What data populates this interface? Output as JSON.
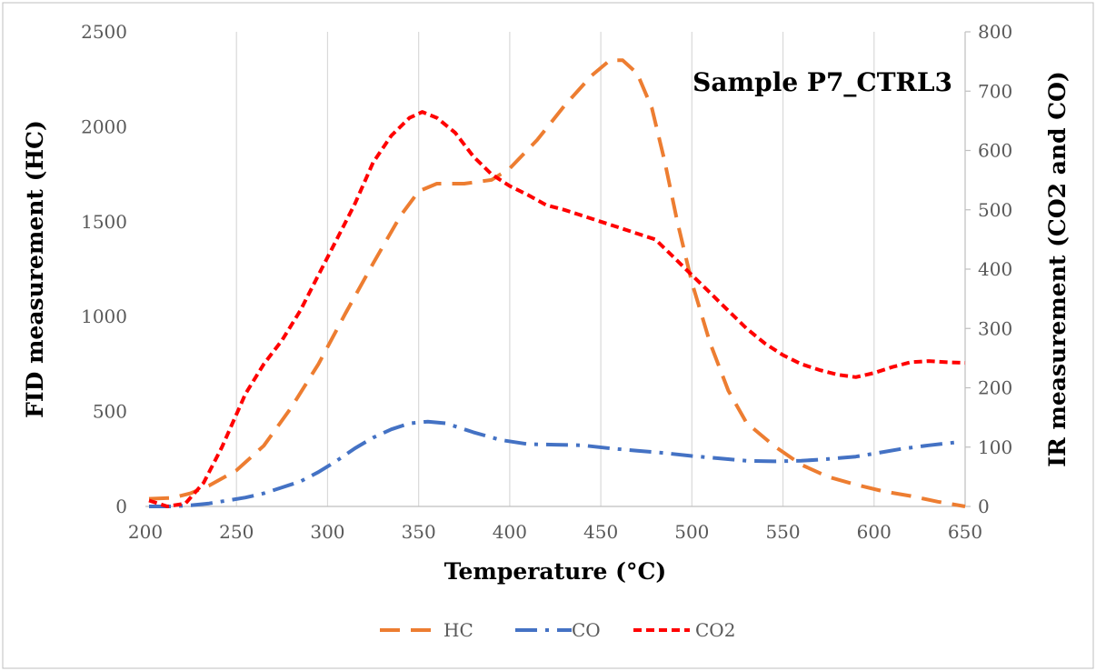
{
  "chart_data": {
    "type": "line",
    "title": "",
    "annotation": "Sample P7_CTRL3",
    "xlabel": "Temperature (°C)",
    "ylabel": "FID measurement (HC)",
    "y2label": "IR measurement (CO2 and CO)",
    "xlim": [
      200,
      650
    ],
    "ylim": [
      0,
      2500
    ],
    "y2lim": [
      0,
      800
    ],
    "xticks": [
      "200",
      "250",
      "300",
      "350",
      "400",
      "450",
      "500",
      "550",
      "600",
      "650"
    ],
    "yticks": [
      "0",
      "500",
      "1000",
      "1500",
      "2000",
      "2500"
    ],
    "y2ticks": [
      "0",
      "100",
      "200",
      "300",
      "400",
      "500",
      "600",
      "700",
      "800"
    ],
    "grid": "vertical",
    "legend_position": "bottom",
    "series": [
      {
        "name": "HC",
        "axis": "left",
        "color": "#ED7D31",
        "style": "long-dash",
        "x": [
          202,
          215,
          225,
          235,
          250,
          265,
          280,
          295,
          310,
          325,
          340,
          350,
          360,
          375,
          390,
          400,
          415,
          430,
          445,
          455,
          462,
          470,
          478,
          485,
          492,
          500,
          510,
          520,
          530,
          545,
          560,
          575,
          590,
          605,
          620,
          635,
          650
        ],
        "y": [
          40,
          45,
          70,
          110,
          190,
          320,
          520,
          750,
          1020,
          1280,
          1530,
          1660,
          1700,
          1700,
          1720,
          1780,
          1930,
          2110,
          2270,
          2350,
          2350,
          2280,
          2100,
          1820,
          1500,
          1180,
          860,
          610,
          440,
          320,
          220,
          155,
          115,
          80,
          55,
          25,
          0
        ]
      },
      {
        "name": "CO",
        "axis": "right",
        "color": "#4472C4",
        "style": "dash-dot",
        "x": [
          202,
          215,
          225,
          235,
          245,
          255,
          265,
          275,
          285,
          295,
          305,
          315,
          325,
          335,
          345,
          355,
          365,
          380,
          395,
          410,
          425,
          440,
          455,
          470,
          485,
          500,
          515,
          530,
          545,
          560,
          575,
          590,
          600,
          615,
          630,
          645
        ],
        "y": [
          0,
          0,
          2,
          5,
          10,
          15,
          22,
          32,
          42,
          58,
          77,
          98,
          116,
          130,
          140,
          143,
          140,
          125,
          112,
          105,
          104,
          103,
          98,
          94,
          90,
          85,
          81,
          77,
          76,
          77,
          80,
          84,
          89,
          97,
          103,
          108
        ]
      },
      {
        "name": "CO2",
        "axis": "right",
        "color": "#FF0000",
        "style": "short-dash",
        "x": [
          202,
          212,
          222,
          232,
          242,
          255,
          265,
          275,
          285,
          295,
          305,
          315,
          325,
          335,
          345,
          352,
          360,
          370,
          380,
          390,
          400,
          410,
          420,
          430,
          440,
          450,
          460,
          470,
          480,
          490,
          500,
          510,
          520,
          530,
          540,
          550,
          560,
          570,
          580,
          590,
          600,
          610,
          620,
          630,
          640,
          650
        ],
        "y": [
          10,
          0,
          5,
          40,
          100,
          190,
          240,
          280,
          330,
          390,
          450,
          510,
          580,
          625,
          655,
          665,
          655,
          630,
          590,
          560,
          540,
          525,
          508,
          500,
          490,
          480,
          470,
          460,
          450,
          420,
          390,
          360,
          330,
          300,
          275,
          255,
          240,
          230,
          222,
          218,
          225,
          235,
          243,
          245,
          243,
          242
        ]
      }
    ]
  }
}
